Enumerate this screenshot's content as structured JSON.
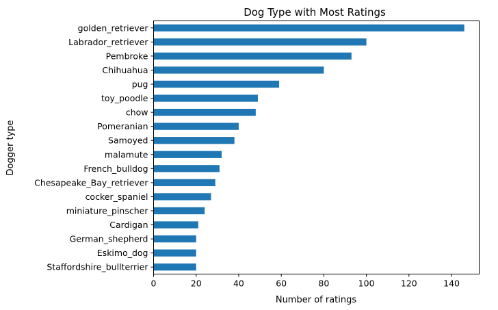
{
  "chart_data": {
    "type": "bar",
    "orientation": "horizontal",
    "title": "Dog Type with Most Ratings",
    "xlabel": "Number of ratings",
    "ylabel": "Dogger type",
    "xlim": [
      0,
      153
    ],
    "xticks": [
      0,
      20,
      40,
      60,
      80,
      100,
      120,
      140
    ],
    "grid": false,
    "bar_color": "#1f77b4",
    "categories": [
      "golden_retriever",
      "Labrador_retriever",
      "Pembroke",
      "Chihuahua",
      "pug",
      "toy_poodle",
      "chow",
      "Pomeranian",
      "Samoyed",
      "malamute",
      "French_bulldog",
      "Chesapeake_Bay_retriever",
      "cocker_spaniel",
      "miniature_pinscher",
      "Cardigan",
      "German_shepherd",
      "Eskimo_dog",
      "Staffordshire_bullterrier"
    ],
    "values": [
      146,
      100,
      93,
      80,
      59,
      49,
      48,
      40,
      38,
      32,
      31,
      29,
      27,
      24,
      21,
      20,
      20,
      20
    ]
  }
}
